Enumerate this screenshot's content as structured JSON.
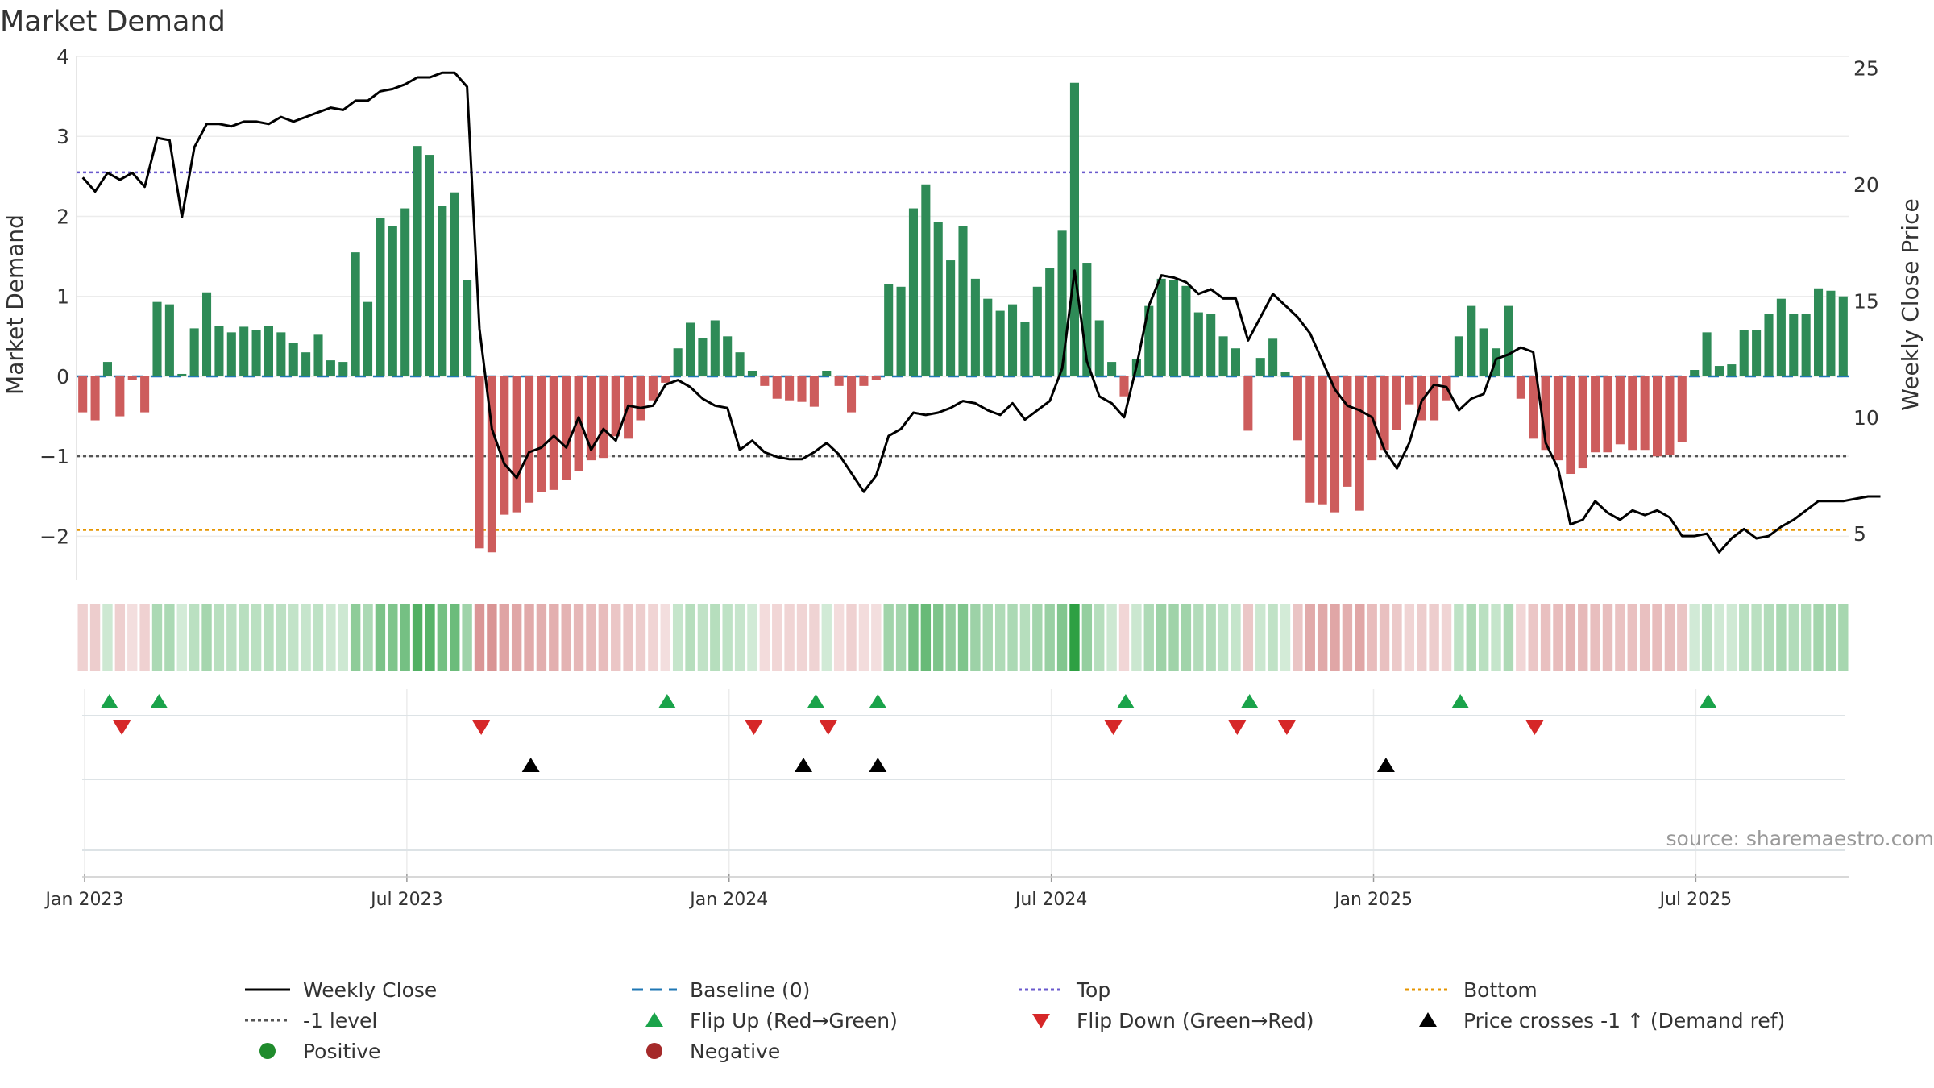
{
  "chart_data": {
    "type": "bar+line",
    "title": "Market Demand",
    "ylabel_left": "Market Demand",
    "ylabel_right": "Weekly Close Price",
    "source": "source: sharemaestro.com",
    "ylim_left": [
      -2.55,
      4.0
    ],
    "ylim_right": [
      3.0,
      25.5
    ],
    "left_ticks": [
      4,
      3,
      2,
      1,
      0,
      -1,
      -2
    ],
    "right_ticks": [
      25,
      20,
      15,
      10,
      5
    ],
    "x_tick_labels": [
      "Jan 2023",
      "Jul 2023",
      "Jan 2024",
      "Jul 2024",
      "Jan 2025",
      "Jul 2025"
    ],
    "x_tick_weeks": [
      0,
      26,
      52,
      78,
      104,
      130
    ],
    "reference_lines": {
      "top": 2.55,
      "bottom": -1.92,
      "minus_one": -1.0,
      "baseline": 0
    },
    "demand": [
      -0.45,
      -0.55,
      0.18,
      -0.5,
      -0.05,
      -0.45,
      0.93,
      0.9,
      0.03,
      0.6,
      1.05,
      0.63,
      0.55,
      0.62,
      0.58,
      0.63,
      0.55,
      0.42,
      0.3,
      0.52,
      0.2,
      0.18,
      1.55,
      0.93,
      1.98,
      1.88,
      2.1,
      2.88,
      2.77,
      2.13,
      2.3,
      1.2,
      -2.15,
      -2.2,
      -1.73,
      -1.7,
      -1.58,
      -1.45,
      -1.42,
      -1.3,
      -1.18,
      -1.05,
      -1.02,
      -0.75,
      -0.78,
      -0.55,
      -0.3,
      -0.08,
      0.35,
      0.67,
      0.48,
      0.7,
      0.5,
      0.3,
      0.07,
      -0.12,
      -0.28,
      -0.3,
      -0.32,
      -0.38,
      0.07,
      -0.12,
      -0.45,
      -0.12,
      -0.05,
      1.15,
      1.12,
      2.1,
      2.4,
      1.93,
      1.45,
      1.88,
      1.22,
      0.97,
      0.82,
      0.9,
      0.68,
      1.12,
      1.35,
      1.82,
      3.67,
      1.42,
      0.7,
      0.18,
      -0.25,
      0.22,
      0.88,
      1.22,
      1.2,
      1.13,
      0.8,
      0.78,
      0.5,
      0.35,
      -0.68,
      0.23,
      0.47,
      0.05,
      -0.8,
      -1.58,
      -1.6,
      -1.7,
      -1.38,
      -1.68,
      -1.05,
      -0.92,
      -0.67,
      -0.35,
      -0.55,
      -0.55,
      -0.3,
      0.5,
      0.88,
      0.6,
      0.35,
      0.88,
      -0.28,
      -0.78,
      -0.92,
      -1.05,
      -1.22,
      -1.15,
      -0.95,
      -0.95,
      -0.85,
      -0.92,
      -0.92,
      -1.0,
      -0.98,
      -0.82,
      0.08,
      0.55,
      0.13,
      0.15,
      0.58,
      0.58,
      0.78,
      0.97,
      0.78,
      0.78,
      1.1,
      1.07,
      1.0
    ],
    "weekly_close": [
      20.3,
      19.7,
      20.5,
      20.2,
      20.5,
      19.9,
      22.0,
      21.9,
      18.6,
      21.6,
      22.6,
      22.6,
      22.5,
      22.7,
      22.7,
      22.6,
      22.9,
      22.7,
      22.9,
      23.1,
      23.3,
      23.2,
      23.6,
      23.6,
      24.0,
      24.1,
      24.3,
      24.6,
      24.6,
      24.8,
      24.8,
      24.2,
      13.8,
      9.5,
      8.0,
      7.4,
      8.5,
      8.7,
      9.2,
      8.7,
      10.0,
      8.6,
      9.5,
      9.0,
      10.5,
      10.4,
      10.5,
      11.4,
      11.6,
      11.3,
      10.8,
      10.5,
      10.4,
      8.6,
      9.0,
      8.5,
      8.3,
      8.2,
      8.2,
      8.5,
      8.9,
      8.4,
      7.6,
      6.8,
      7.5,
      9.2,
      9.5,
      10.2,
      10.1,
      10.2,
      10.4,
      10.7,
      10.6,
      10.3,
      10.1,
      10.6,
      9.9,
      10.3,
      10.7,
      12.1,
      16.3,
      12.4,
      10.9,
      10.6,
      10.0,
      12.2,
      14.8,
      16.1,
      16.0,
      15.8,
      15.3,
      15.5,
      15.1,
      15.1,
      13.3,
      14.3,
      15.3,
      14.8,
      14.3,
      13.6,
      12.4,
      11.2,
      10.5,
      10.3,
      10.0,
      8.6,
      7.8,
      8.9,
      10.7,
      11.4,
      11.3,
      10.3,
      10.8,
      11.0,
      12.5,
      12.7,
      13.0,
      12.8,
      8.9,
      7.8,
      5.4,
      5.6,
      6.4,
      5.9,
      5.6,
      6.0,
      5.8,
      6.0,
      5.7,
      4.9,
      4.9,
      5.0,
      4.2,
      4.8,
      5.2,
      4.8,
      4.9,
      5.3,
      5.6,
      6.0,
      6.4,
      6.4,
      6.4,
      6.5,
      6.6,
      6.6
    ],
    "flip_up_weeks": [
      2,
      6,
      47,
      59,
      64,
      84,
      94,
      111,
      131
    ],
    "flip_down_weeks": [
      3,
      32,
      54,
      60,
      83,
      93,
      97,
      117
    ],
    "price_cross_weeks": [
      36,
      58,
      64,
      105
    ],
    "legend": [
      {
        "label": "Weekly Close",
        "kind": "line",
        "color": "#000000",
        "dash": "none"
      },
      {
        "label": "Baseline (0)",
        "kind": "line",
        "color": "#1f77b4",
        "dash": "dashed"
      },
      {
        "label": "Top",
        "kind": "line",
        "color": "#6a5acd",
        "dash": "dotted"
      },
      {
        "label": "Bottom",
        "kind": "line",
        "color": "#e69500",
        "dash": "dotted"
      },
      {
        "label": "-1 level",
        "kind": "line",
        "color": "#555555",
        "dash": "dotted"
      },
      {
        "label": "Flip Up (Red→Green)",
        "kind": "triangle-up",
        "color": "#1aa34a"
      },
      {
        "label": "Flip Down (Green→Red)",
        "kind": "triangle-down",
        "color": "#d62728"
      },
      {
        "label": "Price crosses -1 ↑ (Demand ref)",
        "kind": "triangle-up",
        "color": "#000000"
      },
      {
        "label": "Positive",
        "kind": "circle",
        "color": "#1f8b2c"
      },
      {
        "label": "Negative",
        "kind": "circle",
        "color": "#a52a2a"
      }
    ],
    "colors": {
      "positive_bar": "#2e8b57",
      "negative_bar": "#cd5c5c",
      "price_line": "#000000",
      "grid": "#ececec"
    }
  }
}
